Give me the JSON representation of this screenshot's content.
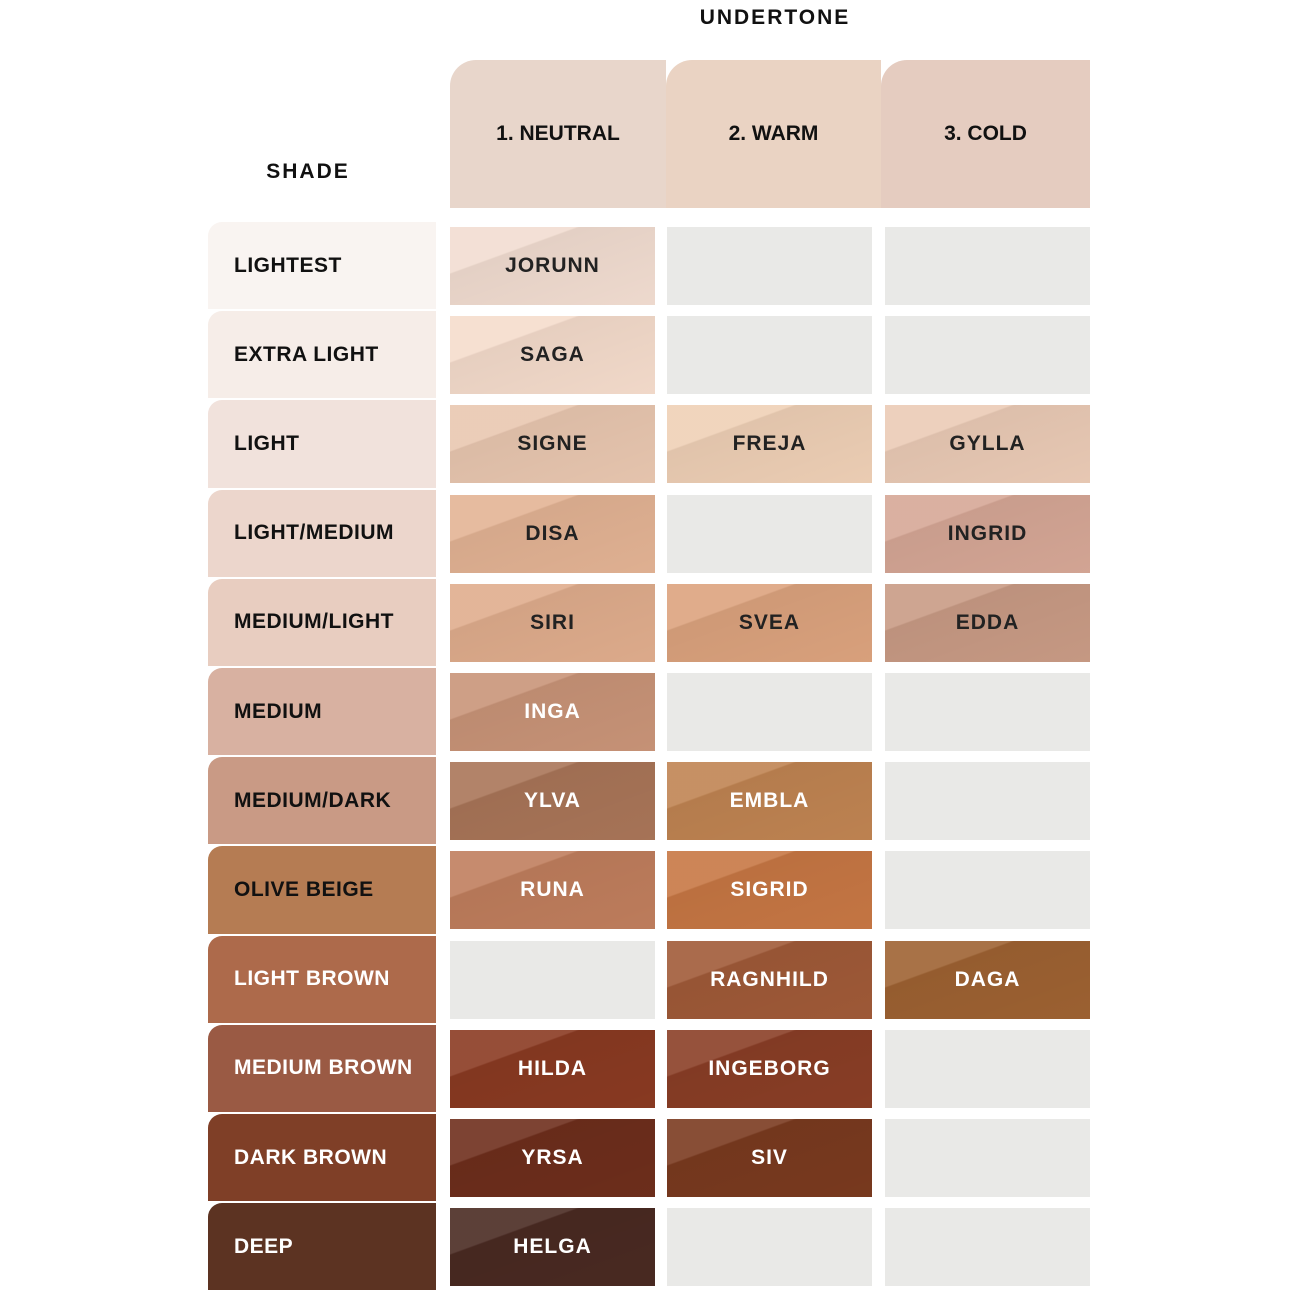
{
  "header": {
    "title": "UNDERTONE",
    "shade_label": "SHADE",
    "columns": [
      {
        "label": "1. NEUTRAL",
        "color": "#e8d6cb"
      },
      {
        "label": "2. WARM",
        "color": "#ead3c3"
      },
      {
        "label": "3. COLD",
        "color": "#e5ccc0"
      }
    ]
  },
  "rows": [
    {
      "shade": "LIGHTEST",
      "color": "#f9f4f1",
      "cells": [
        {
          "name": "JORUNN",
          "color": "#f2ddd1"
        },
        null,
        null
      ]
    },
    {
      "shade": "EXTRA LIGHT",
      "color": "#f6ede8",
      "cells": [
        {
          "name": "SAGA",
          "color": "#f5dccc"
        },
        null,
        null
      ]
    },
    {
      "shade": "LIGHT",
      "color": "#f1e2dc",
      "cells": [
        {
          "name": "SIGNE",
          "color": "#e9c7b0"
        },
        {
          "name": "FREJA",
          "color": "#efd0b6"
        },
        {
          "name": "GYLLA",
          "color": "#ebcbb6"
        }
      ]
    },
    {
      "shade": "LIGHT/MEDIUM",
      "color": "#ecd6cc",
      "cells": [
        {
          "name": "DISA",
          "color": "#e3b394"
        },
        null,
        {
          "name": "INGRID",
          "color": "#d6a796"
        }
      ]
    },
    {
      "shade": "MEDIUM/LIGHT",
      "color": "#e8cdc0",
      "cells": [
        {
          "name": "SIRI",
          "color": "#e0ad8d"
        },
        {
          "name": "SVEA",
          "color": "#dca37e"
        },
        {
          "name": "EDDA",
          "color": "#c99b85"
        }
      ]
    },
    {
      "shade": "MEDIUM",
      "color": "#d8b1a1",
      "cells": [
        {
          "name": "INGA",
          "color": "#c99478"
        },
        null,
        null
      ]
    },
    {
      "shade": "MEDIUM/DARK",
      "color": "#c99a85",
      "cells": [
        {
          "name": "YLVA",
          "color": "#a97558"
        },
        {
          "name": "EMBLA",
          "color": "#c08452"
        },
        null
      ]
    },
    {
      "shade": "OLIVE BEIGE",
      "color": "#b57c53",
      "cells": [
        {
          "name": "RUNA",
          "color": "#c07e5d"
        },
        {
          "name": "SIGRID",
          "color": "#c77744"
        },
        null
      ]
    },
    {
      "shade": "LIGHT BROWN",
      "color": "#ad6a4b",
      "cells": [
        null,
        {
          "name": "RAGNHILD",
          "color": "#a05a38"
        },
        {
          "name": "DAGA",
          "color": "#9e6232"
        }
      ]
    },
    {
      "shade": "MEDIUM BROWN",
      "color": "#9a5a44",
      "cells": [
        {
          "name": "HILDA",
          "color": "#8a3a22"
        },
        {
          "name": "INGEBORG",
          "color": "#8a3e26"
        },
        null
      ]
    },
    {
      "shade": "DARK BROWN",
      "color": "#7f3f27",
      "cells": [
        {
          "name": "YRSA",
          "color": "#6e2e1c"
        },
        {
          "name": "SIV",
          "color": "#7a3a1f"
        },
        null
      ]
    },
    {
      "shade": "DEEP",
      "color": "#5c3322",
      "cells": [
        {
          "name": "HELGA",
          "color": "#4a2a22"
        },
        null,
        null
      ]
    }
  ]
}
